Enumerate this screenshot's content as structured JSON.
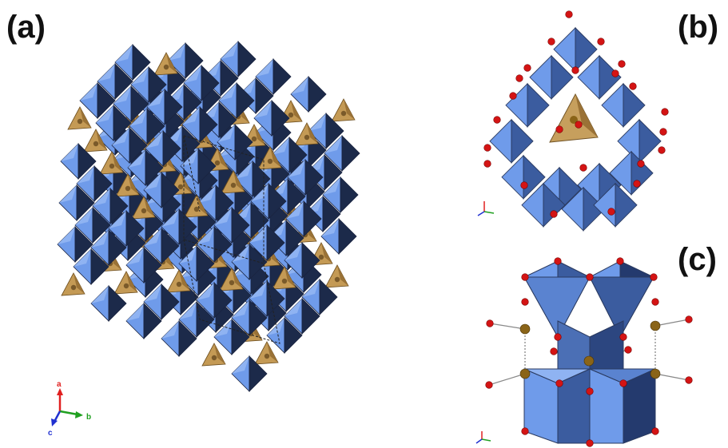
{
  "panels": {
    "a": {
      "label": "(a)"
    },
    "b": {
      "label": "(b)"
    },
    "c": {
      "label": "(c)"
    }
  },
  "axes": {
    "a": {
      "label": "a"
    },
    "b": {
      "label": "b"
    },
    "c": {
      "label": "c"
    }
  },
  "colors": {
    "octahedron_light": "#6f9bea",
    "octahedron_dark": "#1c2a4a",
    "octahedron_mid": "#3b5c9f",
    "tetrahedron": "#c49a55",
    "tetrahedron_dark": "#7a5a2a",
    "oxygen": "#d41414",
    "metal_atom": "#8a6418",
    "axis_a": "#e02020",
    "axis_b": "#20a020",
    "axis_c": "#2030d0"
  }
}
